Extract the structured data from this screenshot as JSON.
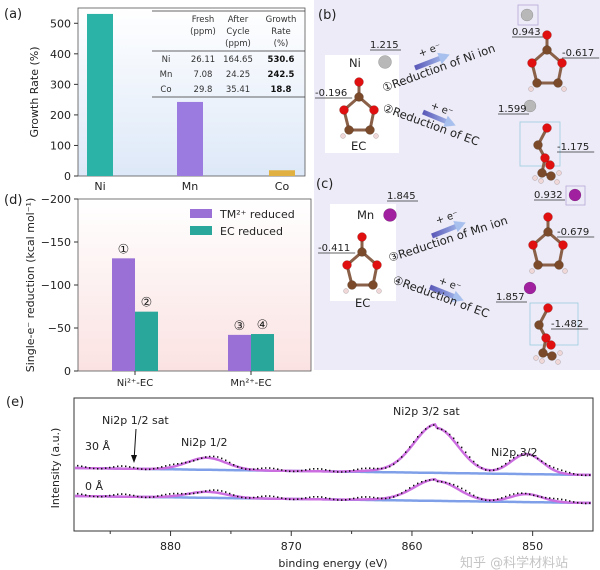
{
  "panel_labels": {
    "a": "(a)",
    "b": "(b)",
    "c": "(c)",
    "d": "(d)",
    "e": "(e)"
  },
  "colors": {
    "teal": "#2ab3a6",
    "purple": "#9b7be0",
    "gold": "#e0b040",
    "tm_purple": "#9a6fd6",
    "ec_teal": "#2aa79b",
    "ni_atom": "#b8b8b8",
    "mn_atom": "#a020a0",
    "oxygen": "#e01010",
    "carbon": "#7a4a2a",
    "panel_bc_bg": "#ecebf7"
  },
  "chart_data": [
    {
      "id": "a",
      "type": "bar",
      "categories": [
        "Ni",
        "Mn",
        "Co"
      ],
      "values": [
        530.6,
        242.5,
        18.8
      ],
      "ylabel": "Growth Rate (%)",
      "ylim": [
        0,
        550
      ],
      "yticks": [
        0,
        100,
        200,
        300,
        400,
        500
      ],
      "table": {
        "headers": [
          [
            "Fresh",
            "(ppm)"
          ],
          [
            "After",
            "Cycle",
            "(ppm)"
          ],
          [
            "Growth",
            "Rate",
            "(%)"
          ]
        ],
        "rows": [
          {
            "el": "Ni",
            "fresh": "26.11",
            "after": "164.65",
            "rate": "530.6"
          },
          {
            "el": "Mn",
            "fresh": "7.08",
            "after": "24.25",
            "rate": "242.5"
          },
          {
            "el": "Co",
            "fresh": "29.8",
            "after": "35.41",
            "rate": "18.8"
          }
        ]
      }
    },
    {
      "id": "d",
      "type": "bar",
      "categories": [
        "Ni²⁺-EC",
        "Mn²⁺-EC"
      ],
      "series": [
        {
          "name": "TM²⁺ reduced",
          "values": [
            -131,
            -42
          ],
          "marks": [
            "①",
            "③"
          ]
        },
        {
          "name": "EC reduced",
          "values": [
            -69,
            -43
          ],
          "marks": [
            "②",
            "④"
          ]
        }
      ],
      "ylabel": "Single-e⁻ reduction (kcal mol⁻¹)",
      "ylim": [
        -200,
        0
      ],
      "yticks": [
        0,
        -50,
        -100,
        -150,
        -200
      ],
      "legend": "top-right"
    },
    {
      "id": "e",
      "type": "line",
      "xlabel": "binding energy (eV)",
      "ylabel": "Intensity (a.u.)",
      "xlim": [
        888,
        845
      ],
      "xticks": [
        880,
        870,
        860,
        850
      ],
      "reversed_x": true,
      "series": [
        {
          "name": "30 Å",
          "peaks": [
            {
              "center": 877,
              "height": 0.12,
              "width": 1.6
            },
            {
              "center": 858,
              "height": 0.45,
              "width": 1.8
            },
            {
              "center": 850.5,
              "height": 0.2,
              "width": 1.3
            }
          ]
        },
        {
          "name": "0 Å",
          "peaks": [
            {
              "center": 877,
              "height": 0.06,
              "width": 1.6
            },
            {
              "center": 858,
              "height": 0.2,
              "width": 1.8
            },
            {
              "center": 850.5,
              "height": 0.08,
              "width": 1.3
            }
          ]
        }
      ],
      "annotations": [
        "Ni2p 1/2 sat",
        "Ni2p 1/2",
        "Ni2p 3/2 sat",
        "Ni2p 3/2"
      ]
    }
  ],
  "scheme": {
    "b": {
      "ion": "Ni",
      "ion_charge": "1.215",
      "ec_charge": "-0.196",
      "ec_label": "EC",
      "electron": "+ e⁻",
      "path1": "①Reduction of Ni ion",
      "path2": "②Reduction of EC",
      "p1_ion": "0.943",
      "p1_ec": "-0.617",
      "p2_ion": "1.599",
      "p2_ec": "-1.175"
    },
    "c": {
      "ion": "Mn",
      "ion_charge": "1.845",
      "ec_charge": "-0.411",
      "ec_label": "EC",
      "electron": "+ e⁻",
      "path1": "③Reduction of Mn ion",
      "path2": "④Reduction of EC",
      "p1_ion": "0.932",
      "p1_ec": "-0.679",
      "p2_ion": "1.857",
      "p2_ec": "-1.482"
    }
  },
  "watermark": "知乎 @科学材料站"
}
